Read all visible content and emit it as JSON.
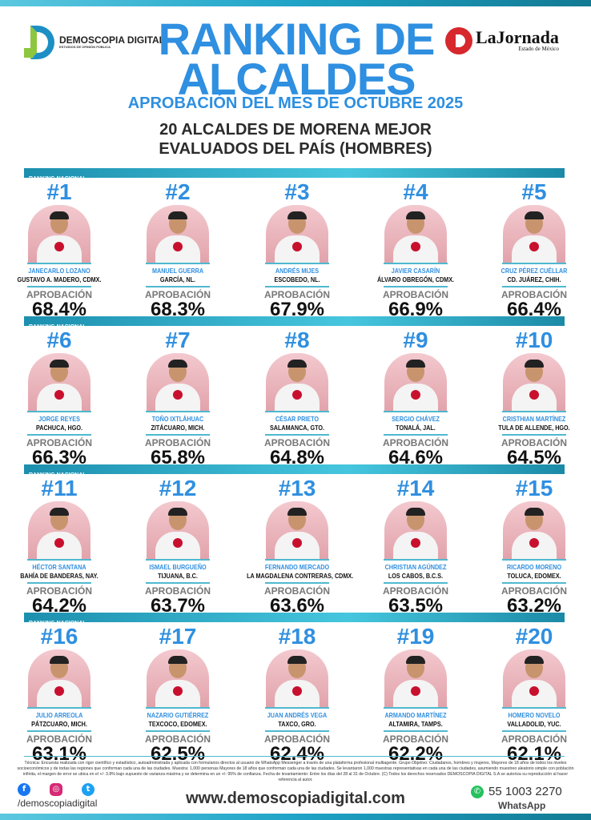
{
  "header": {
    "brand": "DEMOSCOPIA DIGITAL",
    "brand_tagline": "ESTUDIOS DE OPINIÓN PÚBLICA",
    "title": "RANKING DE ALCALDES",
    "subtitle": "APROBACIÓN DEL MES DE OCTUBRE 2025",
    "heading": "20 ALCALDES DE MORENA MEJOR EVALUADOS DEL PAÍS (HOMBRES)",
    "partner": "LaJornada",
    "partner_tagline": "Estado de México"
  },
  "banner_label": "RANKING NACIONAL",
  "approval_label": "APROBACIÓN",
  "colors": {
    "accent_blue": "#2f8fe0",
    "teal": "#1fa3c7",
    "morena_red": "#c8102e"
  },
  "mayors": [
    {
      "rank": "#1",
      "name": "JANECARLO LOZANO",
      "city": "GUSTAVO A. MADERO, CDMX.",
      "approval": "68.4%"
    },
    {
      "rank": "#2",
      "name": "MANUEL GUERRA",
      "city": "GARCÍA, NL.",
      "approval": "68.3%"
    },
    {
      "rank": "#3",
      "name": "ANDRÉS MIJES",
      "city": "ESCOBEDO, NL.",
      "approval": "67.9%"
    },
    {
      "rank": "#4",
      "name": "JAVIER CASARÍN",
      "city": "ÁLVARO OBREGÓN, CDMX.",
      "approval": "66.9%"
    },
    {
      "rank": "#5",
      "name": "CRUZ PÉREZ CUÉLLAR",
      "city": "CD. JUÁREZ, CHIH.",
      "approval": "66.4%"
    },
    {
      "rank": "#6",
      "name": "JORGE REYES",
      "city": "PACHUCA, HGO.",
      "approval": "66.3%"
    },
    {
      "rank": "#7",
      "name": "TOÑO IXTLÁHUAC",
      "city": "ZITÁCUARO, MICH.",
      "approval": "65.8%"
    },
    {
      "rank": "#8",
      "name": "CÉSAR PRIETO",
      "city": "SALAMANCA, GTO.",
      "approval": "64.8%"
    },
    {
      "rank": "#9",
      "name": "SERGIO CHÁVEZ",
      "city": "TONALÁ, JAL.",
      "approval": "64.6%"
    },
    {
      "rank": "#10",
      "name": "CRISTHIAN MARTÍNEZ",
      "city": "TULA DE ALLENDE, HGO.",
      "approval": "64.5%"
    },
    {
      "rank": "#11",
      "name": "HÉCTOR SANTANA",
      "city": "BAHÍA DE BANDERAS, NAY.",
      "approval": "64.2%"
    },
    {
      "rank": "#12",
      "name": "ISMAEL BURGUEÑO",
      "city": "TIJUANA, B.C.",
      "approval": "63.7%"
    },
    {
      "rank": "#13",
      "name": "FERNANDO MERCADO",
      "city": "LA MAGDALENA CONTRERAS, CDMX.",
      "approval": "63.6%"
    },
    {
      "rank": "#14",
      "name": "CHRISTIAN AGÚNDEZ",
      "city": "LOS CABOS, B.C.S.",
      "approval": "63.5%"
    },
    {
      "rank": "#15",
      "name": "RICARDO MORENO",
      "city": "TOLUCA, EDOMEX.",
      "approval": "63.2%"
    },
    {
      "rank": "#16",
      "name": "JULIO ARREOLA",
      "city": "PÁTZCUARO, MICH.",
      "approval": "63.1%"
    },
    {
      "rank": "#17",
      "name": "NAZARIO GUTIÉRREZ",
      "city": "TEXCOCO, EDOMEX.",
      "approval": "62.5%"
    },
    {
      "rank": "#18",
      "name": "JUAN ANDRÉS VEGA",
      "city": "TAXCO, GRO.",
      "approval": "62.4%"
    },
    {
      "rank": "#19",
      "name": "ARMANDO MARTÍNEZ",
      "city": "ALTAMIRA, TAMPS.",
      "approval": "62.2%"
    },
    {
      "rank": "#20",
      "name": "HOMERO NOVELO",
      "city": "VALLADOLID, YUC.",
      "approval": "62.1%"
    }
  ],
  "footer": {
    "methodology": "Técnica: Encuesta realizada con rigor científico y estadístico, autoadministrada y aplicada con formularios directos al usuario de WhatsApp Messenger a través de una plataforma profesional multiagente. Grupo Objetivo: Ciudadanos, hombres y mujeres, Mayores de 18 años de todos los niveles socioeconómicos y de todas las regiones que conforman cada una de las ciudades. Muestra: 1,000 personas Mayores de 18 años que conforman cada una de las ciudades. Se levantaron 1,000 muestras representativas en cada una de las ciudades, asumiendo muestreo aleatorio simple con población infinita, el margen de error se ubica en el +/- 3.8% bajo supuesto de varianza máxima y se determina en un +/- 95% de confianza. Fecha de levantamiento: Entre los días del 28 al 31 de Octubre. (C) Todos los derechos reservados DEMOSCOPIA DIGITAL S.A se autoriza su reproducción al hacer referencia al autor.",
    "social_handle": "/demoscopiadigital",
    "website": "www.demoscopiadigital.com",
    "phone": "55 1003 2270",
    "phone_label": "WhatsApp"
  }
}
